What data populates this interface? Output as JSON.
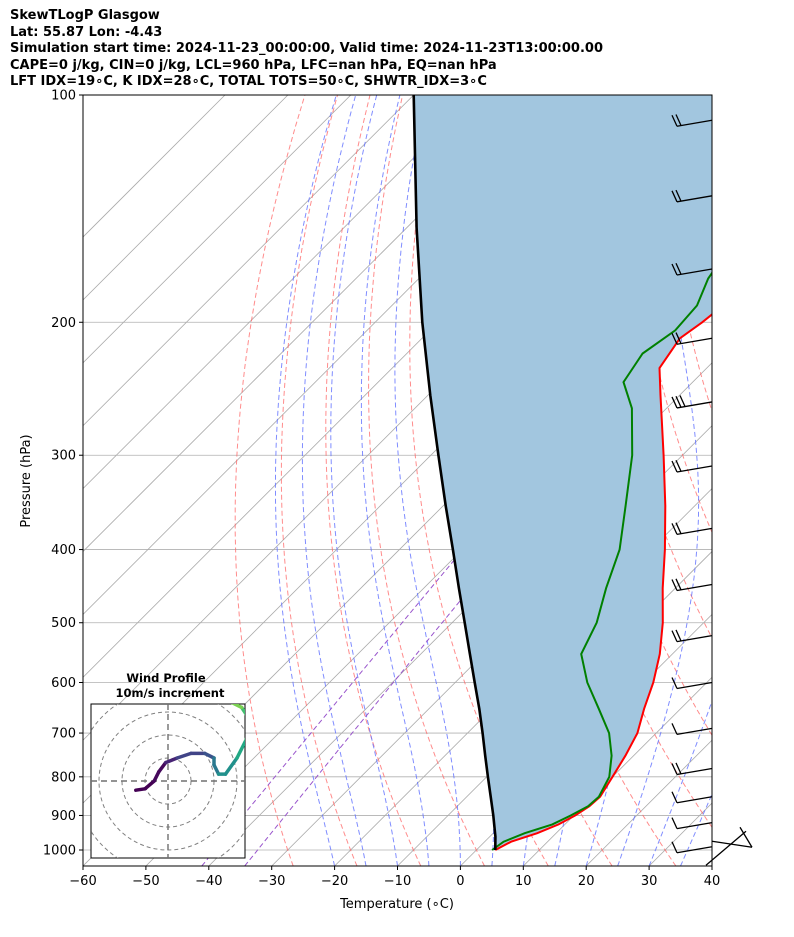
{
  "header": {
    "line1": "SkewTLogP Glasgow",
    "line2": "Lat: 55.87   Lon: -4.43",
    "line3": "Simulation start time: 2024-11-23_00:00:00, Valid time: 2024-11-23T13:00:00.00",
    "line4": "CAPE=0 j/kg, CIN=0 j/kg, LCL=960 hPa, LFC=nan hPa, EQ=nan hPa",
    "line5": "LFT IDX=19∘C, K IDX=28∘C, TOTAL TOTS=50∘C, SHWTR_IDX=3∘C"
  },
  "chart_data": {
    "type": "line",
    "chart_kind": "skew-T log-P diagram",
    "xlabel": "Temperature (∘C)",
    "ylabel": "Pressure (hPa)",
    "xlim": [
      -60,
      40
    ],
    "ylim": [
      1050,
      100
    ],
    "y_scale": "log",
    "grid": true,
    "x_ticks": [
      "−60",
      "−50",
      "−40",
      "−30",
      "−20",
      "−10",
      "0",
      "10",
      "20",
      "30",
      "40"
    ],
    "y_ticks": [
      "100",
      "200",
      "300",
      "400",
      "500",
      "600",
      "700",
      "800",
      "900",
      "1000"
    ],
    "colors": {
      "temperature": "#ff0000",
      "dewpoint": "#008000",
      "parcel": "#000000",
      "shading": "#a2c6df",
      "dry_adiabat": "#ff6666",
      "moist_adiabat": "#6070ff",
      "isotherm": "#aaaaaa",
      "mixing_ratio": "#9955cc"
    },
    "series": [
      {
        "key": "temperature",
        "points": [
          [
            1000,
            3.0
          ],
          [
            975,
            4.2
          ],
          [
            950,
            7.0
          ],
          [
            925,
            9.0
          ],
          [
            900,
            10.2
          ],
          [
            875,
            11.0
          ],
          [
            850,
            11.2
          ],
          [
            800,
            10.0
          ],
          [
            750,
            8.7
          ],
          [
            700,
            7.0
          ],
          [
            650,
            4.2
          ],
          [
            600,
            1.5
          ],
          [
            550,
            -2.0
          ],
          [
            500,
            -6.5
          ],
          [
            450,
            -12.0
          ],
          [
            400,
            -17.8
          ],
          [
            350,
            -24.7
          ],
          [
            300,
            -33.0
          ],
          [
            250,
            -43.0
          ],
          [
            230,
            -47.5
          ],
          [
            210,
            -49.0
          ],
          [
            200,
            -48.0
          ],
          [
            185,
            -47.0
          ],
          [
            170,
            -46.5
          ],
          [
            150,
            -46.0
          ],
          [
            140,
            -45.0
          ],
          [
            120,
            -41.0
          ],
          [
            100,
            -38.5
          ]
        ]
      },
      {
        "key": "dewpoint",
        "points": [
          [
            1000,
            2.5
          ],
          [
            975,
            3.0
          ],
          [
            950,
            5.0
          ],
          [
            925,
            8.0
          ],
          [
            900,
            9.5
          ],
          [
            875,
            10.8
          ],
          [
            850,
            11.0
          ],
          [
            800,
            9.5
          ],
          [
            750,
            6.5
          ],
          [
            700,
            2.5
          ],
          [
            650,
            -3.0
          ],
          [
            600,
            -9.0
          ],
          [
            550,
            -14.5
          ],
          [
            500,
            -17.0
          ],
          [
            450,
            -21.0
          ],
          [
            400,
            -25.0
          ],
          [
            350,
            -31.0
          ],
          [
            300,
            -38.0
          ],
          [
            260,
            -45.5
          ],
          [
            240,
            -51.0
          ],
          [
            220,
            -52.5
          ],
          [
            205,
            -51.0
          ],
          [
            190,
            -51.5
          ],
          [
            175,
            -54.0
          ],
          [
            150,
            -56.5
          ],
          [
            130,
            -56.0
          ],
          [
            120,
            -54.0
          ],
          [
            100,
            -51.0
          ]
        ]
      },
      {
        "key": "parcel",
        "points": [
          [
            1000,
            3.0
          ],
          [
            960,
            0.9
          ],
          [
            900,
            -2.8
          ],
          [
            850,
            -6.2
          ],
          [
            800,
            -9.8
          ],
          [
            750,
            -13.6
          ],
          [
            700,
            -17.6
          ],
          [
            650,
            -22.0
          ],
          [
            600,
            -26.9
          ],
          [
            550,
            -32.2
          ],
          [
            500,
            -38.0
          ],
          [
            450,
            -44.4
          ],
          [
            400,
            -51.5
          ],
          [
            350,
            -59.6
          ],
          [
            300,
            -68.8
          ],
          [
            250,
            -79.6
          ],
          [
            200,
            -92.5
          ],
          [
            150,
            -108.4
          ],
          [
            100,
            -130.0
          ]
        ]
      }
    ],
    "wind_barbs": [
      {
        "p": 108,
        "knots": 20
      },
      {
        "p": 136,
        "knots": 20
      },
      {
        "p": 170,
        "knots": 20
      },
      {
        "p": 210,
        "knots": 20
      },
      {
        "p": 255,
        "knots": 30
      },
      {
        "p": 310,
        "knots": 20
      },
      {
        "p": 375,
        "knots": 20
      },
      {
        "p": 445,
        "knots": 20
      },
      {
        "p": 520,
        "knots": 20
      },
      {
        "p": 600,
        "knots": 10
      },
      {
        "p": 690,
        "knots": 10
      },
      {
        "p": 780,
        "knots": 20
      },
      {
        "p": 850,
        "knots": 10
      },
      {
        "p": 920,
        "knots": 10
      },
      {
        "p": 990,
        "knots": 10
      }
    ],
    "inset": {
      "title": "Wind Profile",
      "subtitle": "10m/s increment",
      "hodograph": [
        [
          -7,
          -2
        ],
        [
          -5,
          -1.7
        ],
        [
          -3,
          0
        ],
        [
          -2,
          2
        ],
        [
          -0.5,
          4
        ],
        [
          2,
          5
        ],
        [
          5,
          6
        ],
        [
          8,
          6
        ],
        [
          10,
          5
        ],
        [
          10,
          3.5
        ],
        [
          11,
          1.5
        ],
        [
          12.5,
          1.5
        ],
        [
          15,
          5
        ],
        [
          17,
          9
        ],
        [
          18,
          13
        ],
        [
          16,
          16
        ],
        [
          13,
          17.5
        ]
      ]
    }
  }
}
